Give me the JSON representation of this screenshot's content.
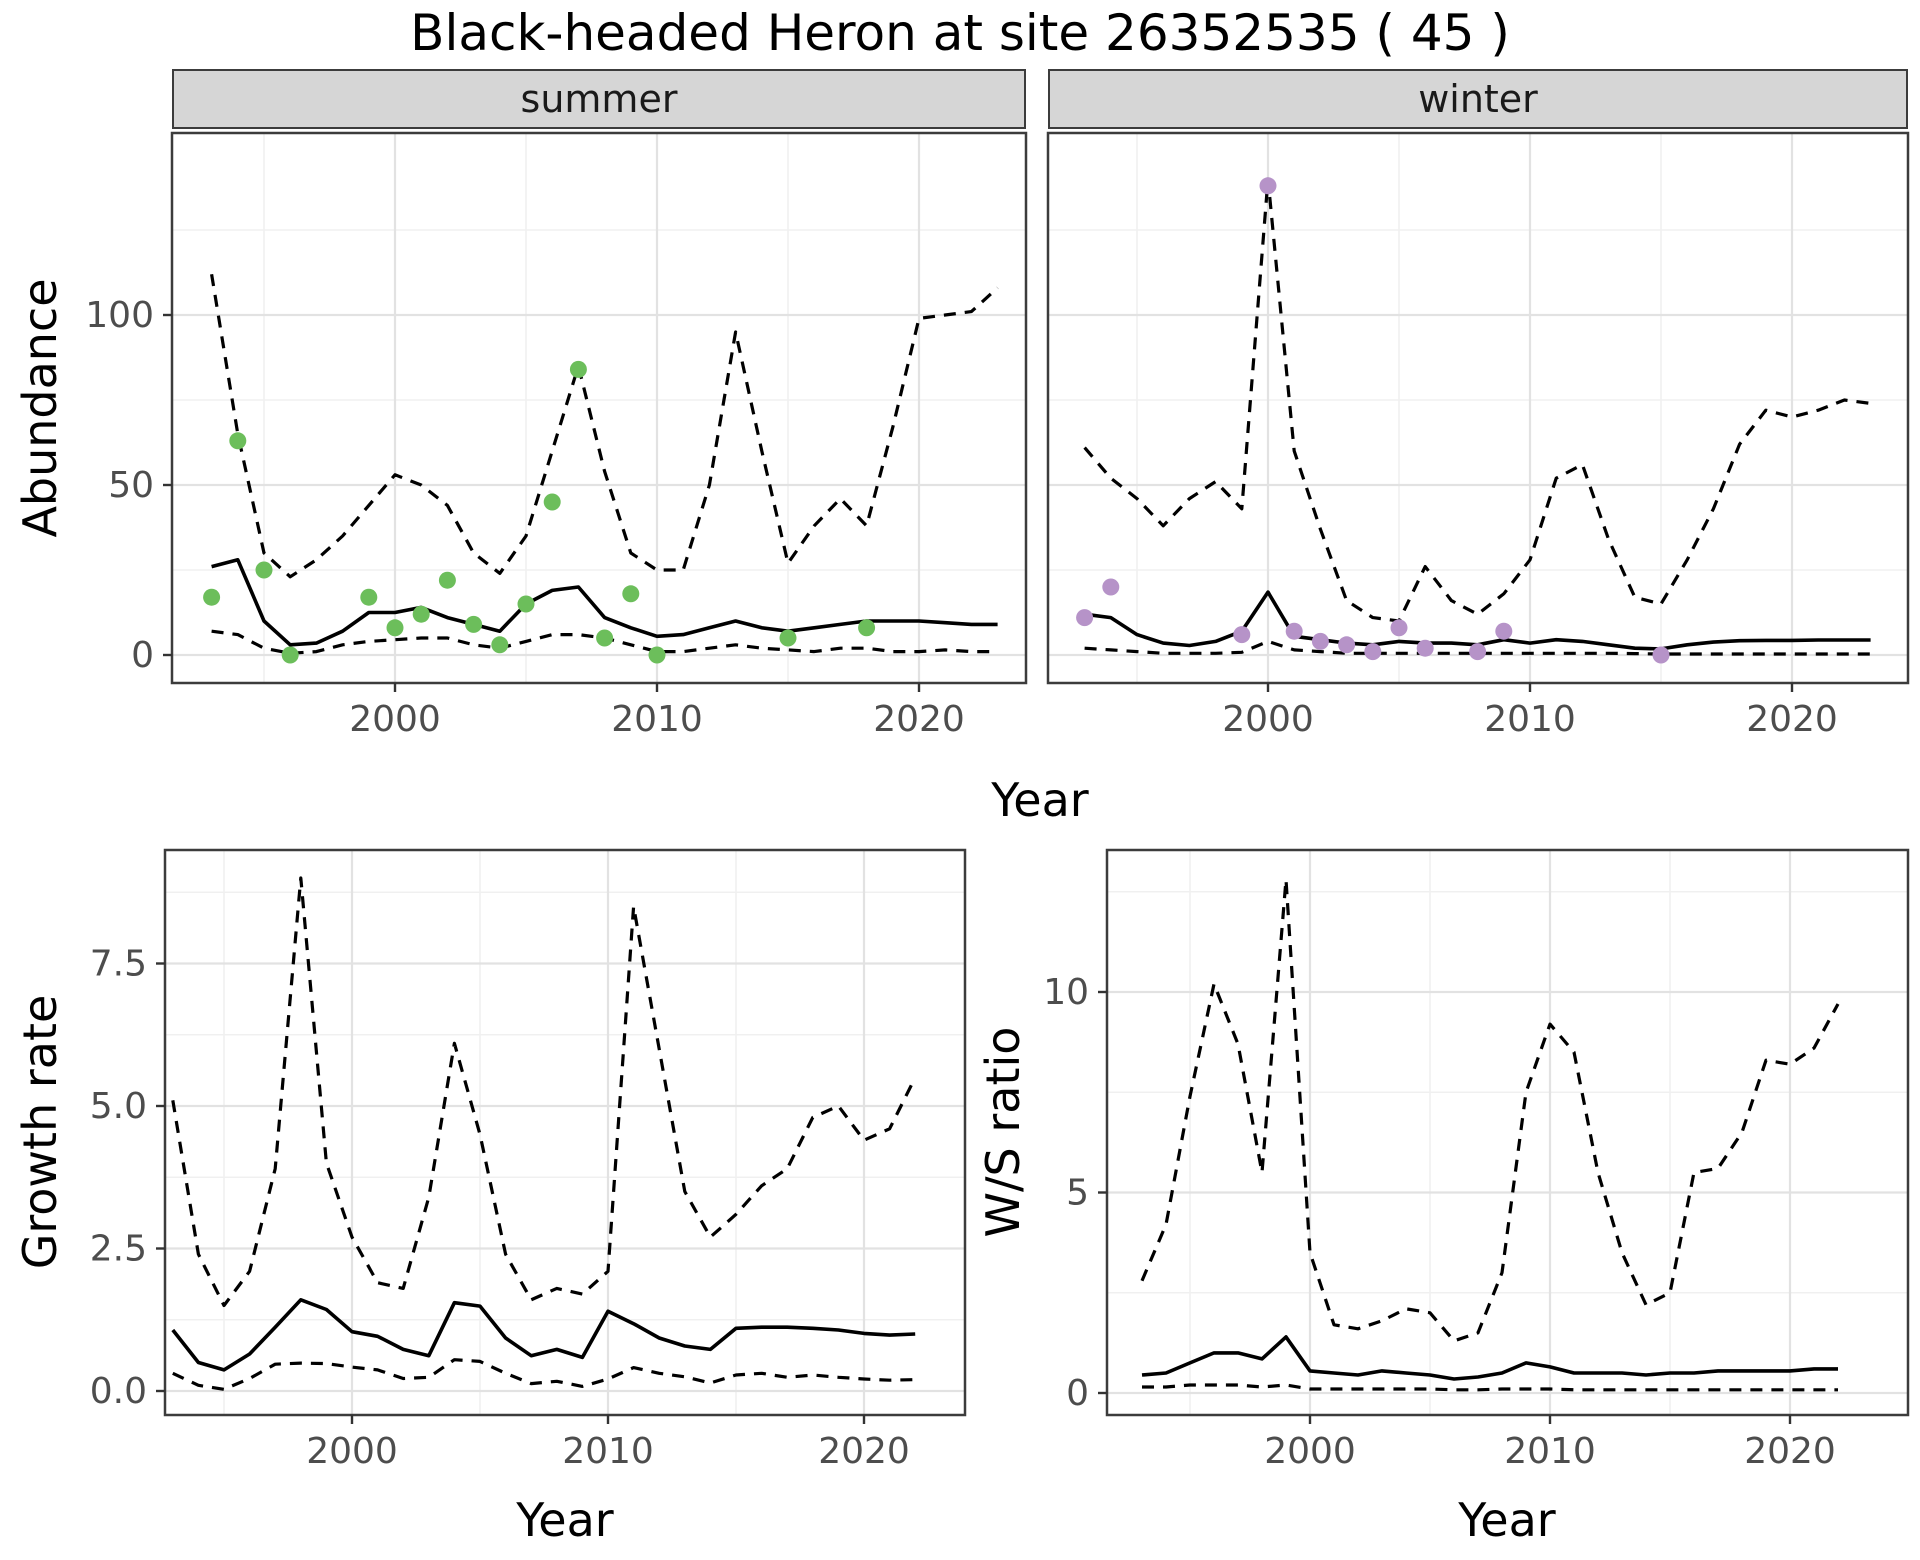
{
  "title": "Black-headed Heron at site 26352535 ( 45 )",
  "colors": {
    "observed_summer": "#6cbe5b",
    "observed_winter": "#b693c8",
    "line": "#000000",
    "grid_major": "#e2e2e2",
    "grid_minor": "#f0f0f0",
    "strip_bg": "#d6d6d6",
    "tick_text": "#4d4d4d",
    "panel_border": "#3c3c3c"
  },
  "chart_data": [
    {
      "id": "abundance-summer",
      "type": "line",
      "facet_label": "summer",
      "xlabel": "Year",
      "ylabel": "Abundance",
      "xlim": [
        1991.5,
        2024.5
      ],
      "ylim": [
        -5,
        145
      ],
      "grid": true,
      "legend": "none",
      "x_ticks": [
        2000,
        2010,
        2020
      ],
      "x_tick_labels": [
        "2000",
        "2010",
        "2020"
      ],
      "y_ticks": [
        0,
        50,
        100
      ],
      "y_tick_labels": [
        "0",
        "50",
        "100"
      ],
      "years": {
        "start": 1993,
        "end": 2023
      },
      "series": [
        {
          "name": "fit",
          "linetype": "solid",
          "values": [
            26,
            28,
            10,
            3,
            3.5,
            7,
            12.5,
            12.5,
            14,
            11,
            9,
            7,
            15,
            19,
            20,
            11,
            8,
            5.5,
            6,
            8,
            10,
            8,
            7,
            8,
            9,
            10,
            10,
            10,
            9.5,
            9,
            9
          ]
        },
        {
          "name": "lower_ci",
          "linetype": "dashed",
          "values": [
            7,
            6,
            2,
            0.5,
            1,
            3,
            4,
            4.5,
            5,
            5,
            3,
            2,
            4,
            6,
            6,
            5,
            3,
            1,
            1,
            2,
            3,
            2,
            1.5,
            1,
            2,
            2,
            1,
            1,
            1.5,
            1,
            1
          ]
        },
        {
          "name": "upper_ci",
          "linetype": "dashed",
          "values": [
            112,
            65,
            30,
            23,
            28,
            35,
            44,
            53,
            50,
            44,
            30,
            24,
            35,
            60,
            85,
            54,
            30,
            25,
            25,
            50,
            95,
            60,
            27,
            38,
            46,
            38,
            67,
            99,
            100,
            101,
            108
          ]
        }
      ],
      "observed": {
        "name": "observed",
        "color": "#6cbe5b",
        "years": [
          1993,
          1994,
          1995,
          1996,
          1999,
          2000,
          2001,
          2002,
          2003,
          2004,
          2005,
          2006,
          2007,
          2008,
          2009,
          2010,
          2015,
          2018
        ],
        "values": [
          17,
          63,
          25,
          0,
          17,
          8,
          12,
          22,
          9,
          3,
          15,
          45,
          84,
          5,
          18,
          0,
          5,
          8
        ]
      }
    },
    {
      "id": "abundance-winter",
      "type": "line",
      "facet_label": "winter",
      "xlabel": "Year",
      "ylabel": "Abundance",
      "xlim": [
        1991.5,
        2024.5
      ],
      "ylim": [
        -5,
        145
      ],
      "grid": true,
      "legend": "none",
      "x_ticks": [
        2000,
        2010,
        2020
      ],
      "x_tick_labels": [
        "2000",
        "2010",
        "2020"
      ],
      "y_ticks": [
        0,
        50,
        100
      ],
      "y_tick_labels": [
        "0",
        "50",
        "100"
      ],
      "years": {
        "start": 1993,
        "end": 2023
      },
      "series": [
        {
          "name": "fit",
          "linetype": "solid",
          "values": [
            12,
            11,
            6,
            3.5,
            2.8,
            4,
            7,
            18.5,
            5.5,
            4.5,
            3.5,
            3,
            4,
            3.5,
            3.5,
            3,
            4.5,
            3.5,
            4.5,
            4,
            3,
            2,
            1.8,
            3,
            3.8,
            4.2,
            4.3,
            4.3,
            4.4,
            4.4,
            4.4
          ]
        },
        {
          "name": "lower_ci",
          "linetype": "dashed",
          "values": [
            2,
            1.5,
            1,
            0.5,
            0.5,
            0.5,
            0.8,
            4,
            1.5,
            1,
            0.5,
            0.5,
            0.5,
            0.5,
            0.5,
            0.5,
            0.5,
            0.5,
            0.5,
            0.5,
            0.5,
            0.4,
            0.3,
            0.3,
            0.3,
            0.3,
            0.3,
            0.3,
            0.3,
            0.3,
            0.3
          ]
        },
        {
          "name": "upper_ci",
          "linetype": "dashed",
          "values": [
            61,
            52,
            46,
            38,
            46,
            51,
            43,
            140,
            60,
            37,
            16,
            11,
            10,
            26,
            16,
            12,
            18,
            28,
            52,
            56,
            34,
            17,
            15,
            28,
            43,
            62,
            72,
            70,
            72,
            75,
            74
          ]
        }
      ],
      "observed": {
        "name": "observed",
        "color": "#b693c8",
        "years": [
          1993,
          1994,
          1999,
          2000,
          2001,
          2002,
          2003,
          2004,
          2005,
          2006,
          2008,
          2009,
          2015
        ],
        "values": [
          11,
          20,
          6,
          138,
          7,
          4,
          3,
          1,
          8,
          2,
          1,
          7,
          0
        ]
      }
    },
    {
      "id": "growth-rate",
      "type": "line",
      "facet_label": "",
      "xlabel": "Year",
      "ylabel": "Growth rate",
      "xlim": [
        1991.5,
        2024.5
      ],
      "ylim": [
        -0.4,
        9.5
      ],
      "grid": true,
      "legend": "none",
      "x_ticks": [
        2000,
        2010,
        2020
      ],
      "x_tick_labels": [
        "2000",
        "2010",
        "2020"
      ],
      "y_ticks": [
        0,
        2.5,
        5,
        7.5
      ],
      "y_tick_labels": [
        "0.0",
        "2.5",
        "5.0",
        "7.5"
      ],
      "years": {
        "start": 1993,
        "end": 2022
      },
      "series": [
        {
          "name": "fit",
          "linetype": "solid",
          "values": [
            1.07,
            0.5,
            0.37,
            0.65,
            1.12,
            1.6,
            1.43,
            1.04,
            0.96,
            0.73,
            0.62,
            1.55,
            1.49,
            0.93,
            0.62,
            0.73,
            0.59,
            1.4,
            1.18,
            0.93,
            0.79,
            0.73,
            1.1,
            1.12,
            1.12,
            1.1,
            1.07,
            1.01,
            0.98,
            1.0
          ]
        },
        {
          "name": "lower_ci",
          "linetype": "dashed",
          "values": [
            0.31,
            0.1,
            0.03,
            0.22,
            0.47,
            0.49,
            0.48,
            0.42,
            0.37,
            0.22,
            0.24,
            0.55,
            0.52,
            0.31,
            0.13,
            0.17,
            0.08,
            0.21,
            0.41,
            0.31,
            0.25,
            0.14,
            0.28,
            0.31,
            0.24,
            0.28,
            0.24,
            0.21,
            0.19,
            0.2
          ]
        },
        {
          "name": "upper_ci",
          "linetype": "dashed",
          "values": [
            5.1,
            2.4,
            1.5,
            2.1,
            3.9,
            9.0,
            4.0,
            2.7,
            1.9,
            1.8,
            3.4,
            6.1,
            4.5,
            2.4,
            1.6,
            1.8,
            1.7,
            2.1,
            8.5,
            6.0,
            3.5,
            2.7,
            3.1,
            3.6,
            3.9,
            4.8,
            5.0,
            4.4,
            4.6,
            5.5
          ]
        }
      ],
      "observed": null
    },
    {
      "id": "ws-ratio",
      "type": "line",
      "facet_label": "",
      "xlabel": "Year",
      "ylabel": "W/S ratio",
      "xlim": [
        1991.5,
        2024.5
      ],
      "ylim": [
        -0.6,
        13.4
      ],
      "grid": true,
      "legend": "none",
      "x_ticks": [
        2000,
        2010,
        2020
      ],
      "x_tick_labels": [
        "2000",
        "2010",
        "2020"
      ],
      "y_ticks": [
        0,
        5,
        10
      ],
      "y_tick_labels": [
        "0",
        "5",
        "10"
      ],
      "years": {
        "start": 1993,
        "end": 2022
      },
      "series": [
        {
          "name": "fit",
          "linetype": "solid",
          "values": [
            0.45,
            0.5,
            0.75,
            1.0,
            1.0,
            0.85,
            1.4,
            0.55,
            0.5,
            0.45,
            0.55,
            0.5,
            0.45,
            0.35,
            0.4,
            0.5,
            0.75,
            0.65,
            0.5,
            0.5,
            0.5,
            0.45,
            0.5,
            0.5,
            0.55,
            0.55,
            0.55,
            0.55,
            0.6,
            0.6
          ]
        },
        {
          "name": "lower_ci",
          "linetype": "dashed",
          "values": [
            0.15,
            0.15,
            0.2,
            0.2,
            0.2,
            0.15,
            0.2,
            0.1,
            0.1,
            0.1,
            0.1,
            0.1,
            0.1,
            0.08,
            0.08,
            0.1,
            0.1,
            0.1,
            0.08,
            0.08,
            0.08,
            0.08,
            0.08,
            0.08,
            0.08,
            0.08,
            0.08,
            0.08,
            0.08,
            0.08
          ]
        },
        {
          "name": "upper_ci",
          "linetype": "dashed",
          "values": [
            2.8,
            4.2,
            7.4,
            10.2,
            8.7,
            5.5,
            12.8,
            3.5,
            1.7,
            1.6,
            1.8,
            2.1,
            2.0,
            1.3,
            1.5,
            3.0,
            7.5,
            9.2,
            8.5,
            5.5,
            3.5,
            2.2,
            2.5,
            5.5,
            5.6,
            6.5,
            8.3,
            8.2,
            8.6,
            9.7
          ]
        }
      ],
      "observed": null
    }
  ],
  "axis_titles": {
    "top_x": "Year",
    "bottom_left_x": "Year",
    "bottom_right_x": "Year"
  }
}
